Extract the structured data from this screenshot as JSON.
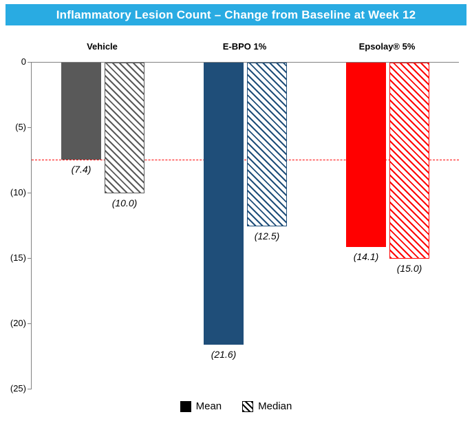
{
  "title": "Inflammatory Lesion Count – Change from Baseline at Week 12",
  "chart_data": {
    "type": "bar",
    "title": "Inflammatory Lesion Count – Change from Baseline at Week 12",
    "categories": [
      "Vehicle",
      "E-BPO 1%",
      "Epsolay® 5%"
    ],
    "series": [
      {
        "name": "Mean",
        "style": "solid",
        "values": [
          -7.4,
          -21.6,
          -14.1
        ],
        "labels": [
          "(7.4)",
          "(21.6)",
          "(14.1)"
        ]
      },
      {
        "name": "Median",
        "style": "hatched",
        "values": [
          -10.0,
          -12.5,
          -15.0
        ],
        "labels": [
          "(10.0)",
          "(12.5)",
          "(15.0)"
        ]
      }
    ],
    "group_colors": [
      "#595959",
      "#1F4E79",
      "#FF0000"
    ],
    "ylim": [
      -25,
      0
    ],
    "yticks": [
      0,
      -5,
      -10,
      -15,
      -20,
      -25
    ],
    "ytick_labels": [
      "0",
      "(5)",
      "(10)",
      "(15)",
      "(20)",
      "(25)"
    ],
    "reference_line": {
      "value": -7.4,
      "color": "#FF0000",
      "style": "dashed"
    },
    "legend": [
      {
        "label": "Mean",
        "style": "solid"
      },
      {
        "label": "Median",
        "style": "hatched"
      }
    ],
    "grid": false,
    "legend_position": "bottom",
    "title_bar_color": "#29ABE2"
  }
}
